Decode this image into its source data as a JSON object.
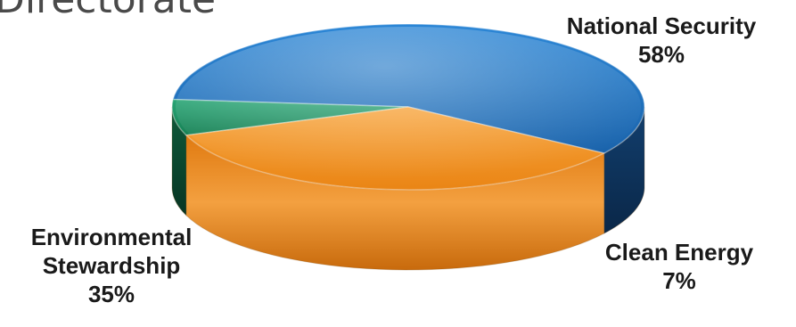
{
  "page": {
    "title": "Directorate"
  },
  "chart_data": {
    "type": "pie",
    "style": "3d",
    "slices": [
      {
        "label_lines": [
          "National Security"
        ],
        "percent_label": "58%",
        "value": 58,
        "color": "#1f6fb8"
      },
      {
        "label_lines": [
          "Clean Energy"
        ],
        "percent_label": "7%",
        "value": 7,
        "color": "#1f8c5e"
      },
      {
        "label_lines": [
          "Environmental",
          "Stewardship"
        ],
        "percent_label": "35%",
        "value": 35,
        "color": "#f08c1a"
      }
    ]
  }
}
